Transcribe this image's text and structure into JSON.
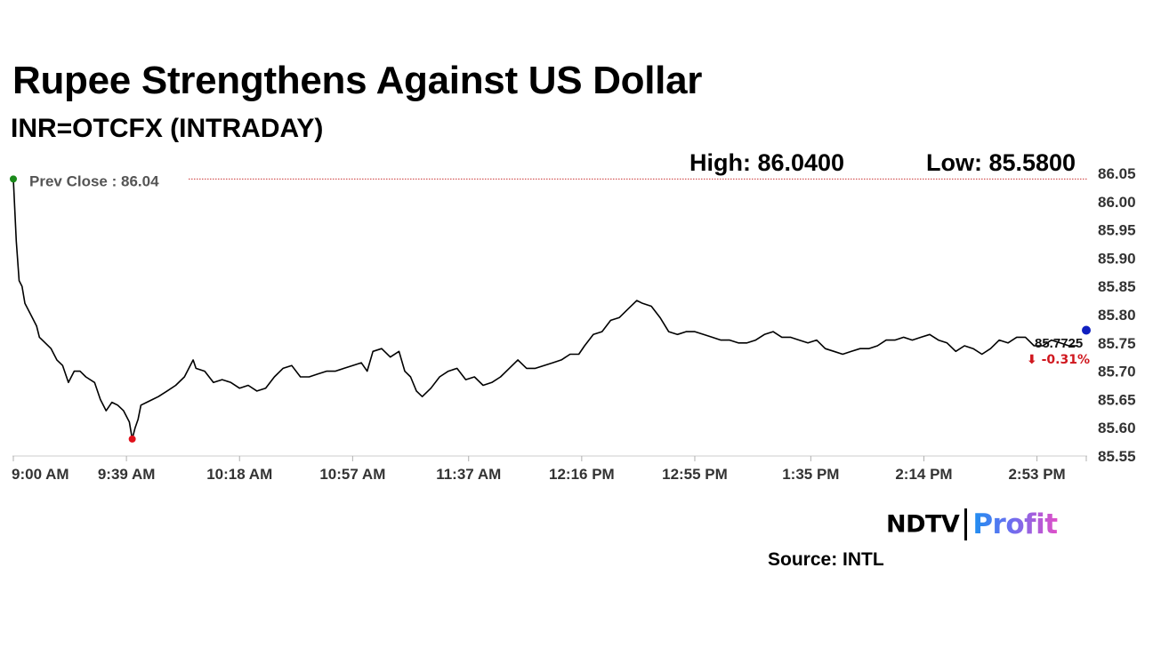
{
  "header": {
    "title": "Rupee Strengthens Against US Dollar",
    "subtitle": "INR=OTCFX (INTRADAY)",
    "high": "High: 86.0400",
    "low": "Low: 85.5800"
  },
  "footer": {
    "brand_left": "NDTV",
    "brand_right": "Profit",
    "source": "Source: INTL"
  },
  "colors": {
    "line": "#000000",
    "prev_close_line": "#cc3333",
    "high_marker": "#1a8a1a",
    "low_marker": "#e0101a",
    "last_marker": "#1020c0",
    "change_down": "#d0181f"
  },
  "chart_data": {
    "type": "line",
    "title": "Rupee Strengthens Against US Dollar",
    "subtitle": "INR=OTCFX (INTRADAY)",
    "x_ticks": [
      "9:00 AM",
      "9:39 AM",
      "10:18 AM",
      "10:57 AM",
      "11:37 AM",
      "12:16 PM",
      "12:55 PM",
      "1:35 PM",
      "2:14 PM",
      "2:53 PM"
    ],
    "y_ticks": [
      "86.05",
      "86.00",
      "85.95",
      "85.90",
      "85.85",
      "85.80",
      "85.75",
      "85.70",
      "85.65",
      "85.60",
      "85.55"
    ],
    "ylim": [
      85.55,
      86.05
    ],
    "x_start": "9:00 AM",
    "x_end": "3:10 PM",
    "prev_close_label": "Prev Close : 86.04",
    "prev_close": 86.04,
    "last_value_label": "85.7725",
    "last_value": 85.7725,
    "change_label": "⬇ -0.31%",
    "low_point": {
      "x": "9:41 AM",
      "y": 85.58
    },
    "high_point": {
      "x": "9:00 AM",
      "y": 86.04
    },
    "series": [
      {
        "points": [
          [
            "9:00 AM",
            86.04
          ],
          [
            "9:01 AM",
            85.93
          ],
          [
            "9:02 AM",
            85.86
          ],
          [
            "9:03 AM",
            85.85
          ],
          [
            "9:04 AM",
            85.82
          ],
          [
            "9:06 AM",
            85.8
          ],
          [
            "9:08 AM",
            85.78
          ],
          [
            "9:09 AM",
            85.76
          ],
          [
            "9:11 AM",
            85.75
          ],
          [
            "9:13 AM",
            85.74
          ],
          [
            "9:15 AM",
            85.72
          ],
          [
            "9:17 AM",
            85.71
          ],
          [
            "9:19 AM",
            85.68
          ],
          [
            "9:21 AM",
            85.7
          ],
          [
            "9:23 AM",
            85.7
          ],
          [
            "9:25 AM",
            85.69
          ],
          [
            "9:28 AM",
            85.68
          ],
          [
            "9:30 AM",
            85.65
          ],
          [
            "9:32 AM",
            85.63
          ],
          [
            "9:34 AM",
            85.645
          ],
          [
            "9:36 AM",
            85.64
          ],
          [
            "9:38 AM",
            85.63
          ],
          [
            "9:40 AM",
            85.61
          ],
          [
            "9:41 AM",
            85.58
          ],
          [
            "9:42 AM",
            85.6
          ],
          [
            "9:43 AM",
            85.615
          ],
          [
            "9:44 AM",
            85.64
          ],
          [
            "9:46 AM",
            85.645
          ],
          [
            "9:48 AM",
            85.65
          ],
          [
            "9:50 AM",
            85.655
          ],
          [
            "9:53 AM",
            85.665
          ],
          [
            "9:56 AM",
            85.675
          ],
          [
            "9:59 AM",
            85.69
          ],
          [
            "10:02 AM",
            85.72
          ],
          [
            "10:03 AM",
            85.705
          ],
          [
            "10:06 AM",
            85.7
          ],
          [
            "10:09 AM",
            85.68
          ],
          [
            "10:12 AM",
            85.685
          ],
          [
            "10:15 AM",
            85.68
          ],
          [
            "10:18 AM",
            85.67
          ],
          [
            "10:21 AM",
            85.675
          ],
          [
            "10:24 AM",
            85.665
          ],
          [
            "10:27 AM",
            85.67
          ],
          [
            "10:30 AM",
            85.69
          ],
          [
            "10:33 AM",
            85.705
          ],
          [
            "10:36 AM",
            85.71
          ],
          [
            "10:39 AM",
            85.69
          ],
          [
            "10:42 AM",
            85.69
          ],
          [
            "10:45 AM",
            85.695
          ],
          [
            "10:48 AM",
            85.7
          ],
          [
            "10:51 AM",
            85.7
          ],
          [
            "10:54 AM",
            85.705
          ],
          [
            "10:57 AM",
            85.71
          ],
          [
            "11:00 AM",
            85.715
          ],
          [
            "11:02 AM",
            85.7
          ],
          [
            "11:04 AM",
            85.735
          ],
          [
            "11:07 AM",
            85.74
          ],
          [
            "11:10 AM",
            85.725
          ],
          [
            "11:13 AM",
            85.735
          ],
          [
            "11:15 AM",
            85.7
          ],
          [
            "11:17 AM",
            85.69
          ],
          [
            "11:19 AM",
            85.665
          ],
          [
            "11:21 AM",
            85.655
          ],
          [
            "11:24 AM",
            85.67
          ],
          [
            "11:27 AM",
            85.69
          ],
          [
            "11:30 AM",
            85.7
          ],
          [
            "11:33 AM",
            85.705
          ],
          [
            "11:36 AM",
            85.685
          ],
          [
            "11:39 AM",
            85.69
          ],
          [
            "11:42 AM",
            85.675
          ],
          [
            "11:45 AM",
            85.68
          ],
          [
            "11:48 AM",
            85.69
          ],
          [
            "11:51 AM",
            85.705
          ],
          [
            "11:54 AM",
            85.72
          ],
          [
            "11:57 AM",
            85.705
          ],
          [
            "12:00 PM",
            85.705
          ],
          [
            "12:03 PM",
            85.71
          ],
          [
            "12:06 PM",
            85.715
          ],
          [
            "12:09 PM",
            85.72
          ],
          [
            "12:12 PM",
            85.73
          ],
          [
            "12:15 PM",
            85.73
          ],
          [
            "12:17 PM",
            85.745
          ],
          [
            "12:20 PM",
            85.765
          ],
          [
            "12:23 PM",
            85.77
          ],
          [
            "12:26 PM",
            85.79
          ],
          [
            "12:29 PM",
            85.795
          ],
          [
            "12:32 PM",
            85.81
          ],
          [
            "12:35 PM",
            85.825
          ],
          [
            "12:37 PM",
            85.82
          ],
          [
            "12:40 PM",
            85.815
          ],
          [
            "12:43 PM",
            85.795
          ],
          [
            "12:46 PM",
            85.77
          ],
          [
            "12:49 PM",
            85.765
          ],
          [
            "12:52 PM",
            85.77
          ],
          [
            "12:55 PM",
            85.77
          ],
          [
            "12:58 PM",
            85.765
          ],
          [
            "1:01 PM",
            85.76
          ],
          [
            "1:04 PM",
            85.755
          ],
          [
            "1:07 PM",
            85.755
          ],
          [
            "1:10 PM",
            85.75
          ],
          [
            "1:13 PM",
            85.75
          ],
          [
            "1:16 PM",
            85.755
          ],
          [
            "1:19 PM",
            85.765
          ],
          [
            "1:22 PM",
            85.77
          ],
          [
            "1:25 PM",
            85.76
          ],
          [
            "1:28 PM",
            85.76
          ],
          [
            "1:31 PM",
            85.755
          ],
          [
            "1:34 PM",
            85.75
          ],
          [
            "1:37 PM",
            85.755
          ],
          [
            "1:40 PM",
            85.74
          ],
          [
            "1:43 PM",
            85.735
          ],
          [
            "1:46 PM",
            85.73
          ],
          [
            "1:49 PM",
            85.735
          ],
          [
            "1:52 PM",
            85.74
          ],
          [
            "1:55 PM",
            85.74
          ],
          [
            "1:58 PM",
            85.745
          ],
          [
            "2:01 PM",
            85.755
          ],
          [
            "2:04 PM",
            85.755
          ],
          [
            "2:07 PM",
            85.76
          ],
          [
            "2:10 PM",
            85.755
          ],
          [
            "2:13 PM",
            85.76
          ],
          [
            "2:16 PM",
            85.765
          ],
          [
            "2:19 PM",
            85.755
          ],
          [
            "2:22 PM",
            85.75
          ],
          [
            "2:25 PM",
            85.735
          ],
          [
            "2:28 PM",
            85.745
          ],
          [
            "2:31 PM",
            85.74
          ],
          [
            "2:34 PM",
            85.73
          ],
          [
            "2:37 PM",
            85.74
          ],
          [
            "2:40 PM",
            85.755
          ],
          [
            "2:43 PM",
            85.75
          ],
          [
            "2:46 PM",
            85.76
          ],
          [
            "2:49 PM",
            85.76
          ],
          [
            "2:52 PM",
            85.745
          ],
          [
            "2:55 PM",
            85.745
          ],
          [
            "2:58 PM",
            85.755
          ],
          [
            "3:01 PM",
            85.75
          ],
          [
            "3:04 PM",
            85.745
          ],
          [
            "3:07 PM",
            85.745
          ]
        ]
      }
    ]
  }
}
